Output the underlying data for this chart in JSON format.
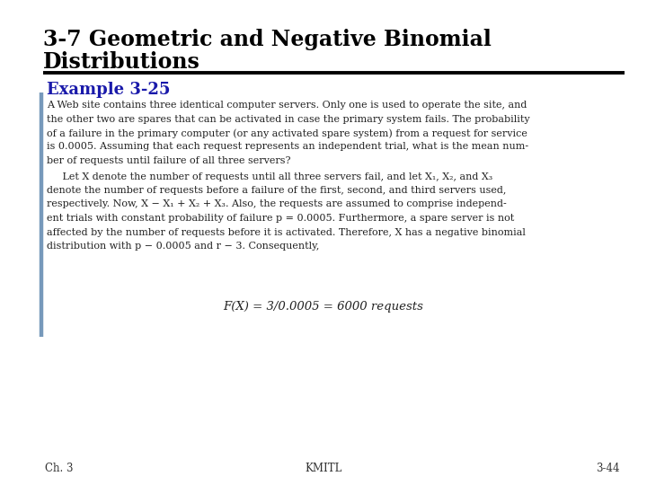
{
  "title_line1": "3-7 Geometric and Negative Binomial",
  "title_line2": "Distributions",
  "example_label": "Example 3-25",
  "para1_lines": [
    "A Web site contains three identical computer servers. Only one is used to operate the site, and",
    "the other two are spares that can be activated in case the primary system fails. The probability",
    "of a failure in the primary computer (or any activated spare system) from a request for service",
    "is 0.0005. Assuming that each request represents an independent trial, what is the mean num-",
    "ber of requests until failure of all three servers?"
  ],
  "para2_lines": [
    "     Let X denote the number of requests until all three servers fail, and let X₁, X₂, and X₃",
    "denote the number of requests before a failure of the first, second, and third servers used,",
    "respectively. Now, X − X₁ + X₂ + X₃. Also, the requests are assumed to comprise independ-",
    "ent trials with constant probability of failure p = 0.0005. Furthermore, a spare server is not",
    "affected by the number of requests before it is activated. Therefore, X has a negative binomial",
    "distribution with p − 0.0005 and r − 3. Consequently,"
  ],
  "formula": "F(X) = 3/0.0005 = 6000 requests",
  "footer_left": "Ch. 3",
  "footer_center": "KMITL",
  "footer_right": "3-44",
  "bg_color": "#ffffff",
  "title_color": "#000000",
  "example_color": "#1a1aaa",
  "body_color": "#222222",
  "footer_color": "#333333",
  "line_color": "#000000",
  "sidebar_color": "#7799bb",
  "title_fontsize": 17,
  "example_fontsize": 13,
  "body_fontsize": 8.0,
  "footer_fontsize": 8.5,
  "formula_fontsize": 9.5
}
